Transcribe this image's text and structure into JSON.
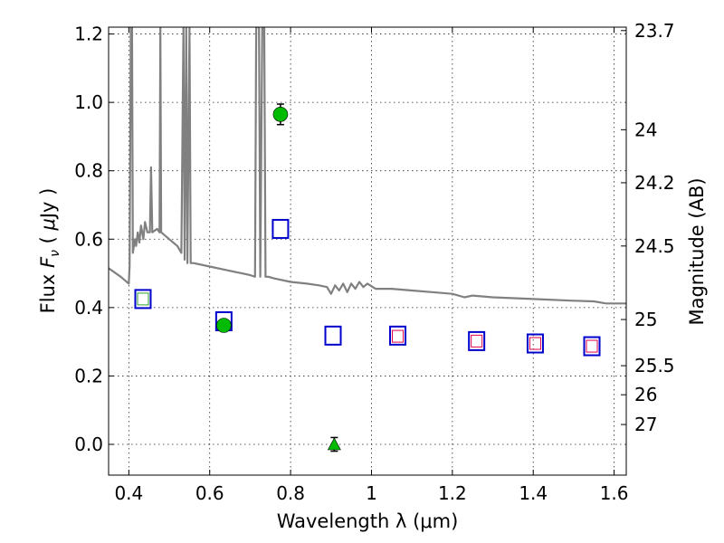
{
  "chart_data": {
    "type": "scatter",
    "xlabel": "Wavelength  λ (μm)",
    "ylabel_left": "Flux  F_ν  ( μJy )",
    "ylabel_right": "Magnitude (AB)",
    "xlim": [
      0.35,
      1.63
    ],
    "ylim": [
      -0.09,
      1.22
    ],
    "grid": true,
    "x_ticks": [
      0.4,
      0.6,
      0.8,
      1.0,
      1.2,
      1.4,
      1.6
    ],
    "x_tick_labels": [
      "0.4",
      "0.6",
      "0.8",
      "1",
      "1.2",
      "1.4",
      "1.6"
    ],
    "y_ticks": [
      0.0,
      0.2,
      0.4,
      0.6,
      0.8,
      1.0,
      1.2
    ],
    "y_tick_labels": [
      "0.0",
      "0.2",
      "0.4",
      "0.6",
      "0.8",
      "1.0",
      "1.2"
    ],
    "right_ticks": [
      {
        "label": "23.7",
        "flux": 1.21
      },
      {
        "label": "24",
        "flux": 0.92
      },
      {
        "label": "24.2",
        "flux": 0.765
      },
      {
        "label": "24.5",
        "flux": 0.58
      },
      {
        "label": "25",
        "flux": 0.365
      },
      {
        "label": "25.5",
        "flux": 0.23
      },
      {
        "label": "26",
        "flux": 0.145
      },
      {
        "label": "27",
        "flux": 0.058
      }
    ],
    "series": [
      {
        "marker": "line",
        "color": "#808080",
        "points": [
          [
            0.35,
            0.515
          ],
          [
            0.38,
            0.49
          ],
          [
            0.4,
            0.47
          ],
          [
            0.402,
            0.52
          ],
          [
            0.405,
            1.22
          ],
          [
            0.408,
            1.22
          ],
          [
            0.41,
            0.56
          ],
          [
            0.415,
            0.6
          ],
          [
            0.418,
            0.58
          ],
          [
            0.422,
            0.62
          ],
          [
            0.426,
            0.59
          ],
          [
            0.43,
            0.64
          ],
          [
            0.436,
            0.6
          ],
          [
            0.44,
            0.65
          ],
          [
            0.446,
            0.62
          ],
          [
            0.452,
            0.62
          ],
          [
            0.455,
            0.81
          ],
          [
            0.458,
            0.62
          ],
          [
            0.47,
            0.63
          ],
          [
            0.476,
            0.62
          ],
          [
            0.478,
            1.22
          ],
          [
            0.48,
            0.62
          ],
          [
            0.5,
            0.6
          ],
          [
            0.52,
            0.58
          ],
          [
            0.53,
            0.56
          ],
          [
            0.535,
            1.22
          ],
          [
            0.538,
            0.54
          ],
          [
            0.542,
            1.22
          ],
          [
            0.545,
            0.53
          ],
          [
            0.55,
            1.22
          ],
          [
            0.553,
            0.53
          ],
          [
            0.56,
            0.53
          ],
          [
            0.6,
            0.52
          ],
          [
            0.64,
            0.51
          ],
          [
            0.68,
            0.5
          ],
          [
            0.7,
            0.495
          ],
          [
            0.712,
            0.49
          ],
          [
            0.715,
            1.22
          ],
          [
            0.722,
            1.22
          ],
          [
            0.725,
            0.49
          ],
          [
            0.73,
            1.22
          ],
          [
            0.735,
            1.22
          ],
          [
            0.738,
            0.49
          ],
          [
            0.745,
            0.49
          ],
          [
            0.76,
            0.485
          ],
          [
            0.8,
            0.475
          ],
          [
            0.84,
            0.47
          ],
          [
            0.87,
            0.465
          ],
          [
            0.89,
            0.46
          ],
          [
            0.9,
            0.44
          ],
          [
            0.91,
            0.465
          ],
          [
            0.92,
            0.45
          ],
          [
            0.93,
            0.47
          ],
          [
            0.94,
            0.445
          ],
          [
            0.95,
            0.47
          ],
          [
            0.96,
            0.455
          ],
          [
            0.97,
            0.475
          ],
          [
            0.98,
            0.46
          ],
          [
            0.99,
            0.47
          ],
          [
            1.01,
            0.455
          ],
          [
            1.05,
            0.455
          ],
          [
            1.1,
            0.45
          ],
          [
            1.15,
            0.445
          ],
          [
            1.2,
            0.44
          ],
          [
            1.23,
            0.43
          ],
          [
            1.25,
            0.435
          ],
          [
            1.3,
            0.43
          ],
          [
            1.4,
            0.425
          ],
          [
            1.5,
            0.42
          ],
          [
            1.55,
            0.418
          ],
          [
            1.58,
            0.412
          ],
          [
            1.63,
            0.412
          ]
        ]
      },
      {
        "marker": "open-square",
        "color": "#0000cc",
        "points": [
          [
            0.435,
            0.425
          ],
          [
            0.635,
            0.36
          ],
          [
            0.775,
            0.63
          ],
          [
            0.905,
            0.318
          ],
          [
            1.065,
            0.318
          ],
          [
            1.26,
            0.302
          ],
          [
            1.405,
            0.295
          ],
          [
            1.545,
            0.287
          ]
        ]
      },
      {
        "marker": "open-square-small",
        "color": "#e0004a",
        "points": [
          [
            1.065,
            0.316
          ],
          [
            1.26,
            0.302
          ],
          [
            1.405,
            0.295
          ],
          [
            1.545,
            0.287
          ]
        ]
      },
      {
        "marker": "open-square-small",
        "color": "#2ca02c",
        "points": [
          [
            0.435,
            0.425
          ]
        ]
      },
      {
        "marker": "filled-circle",
        "color": "#00bb00",
        "points": [
          [
            0.635,
            0.348,
            0.015
          ],
          [
            0.775,
            0.965,
            0.03
          ]
        ]
      },
      {
        "marker": "filled-triangle",
        "color": "#00bb00",
        "points": [
          [
            0.908,
            0.0,
            0.02
          ]
        ]
      }
    ]
  }
}
